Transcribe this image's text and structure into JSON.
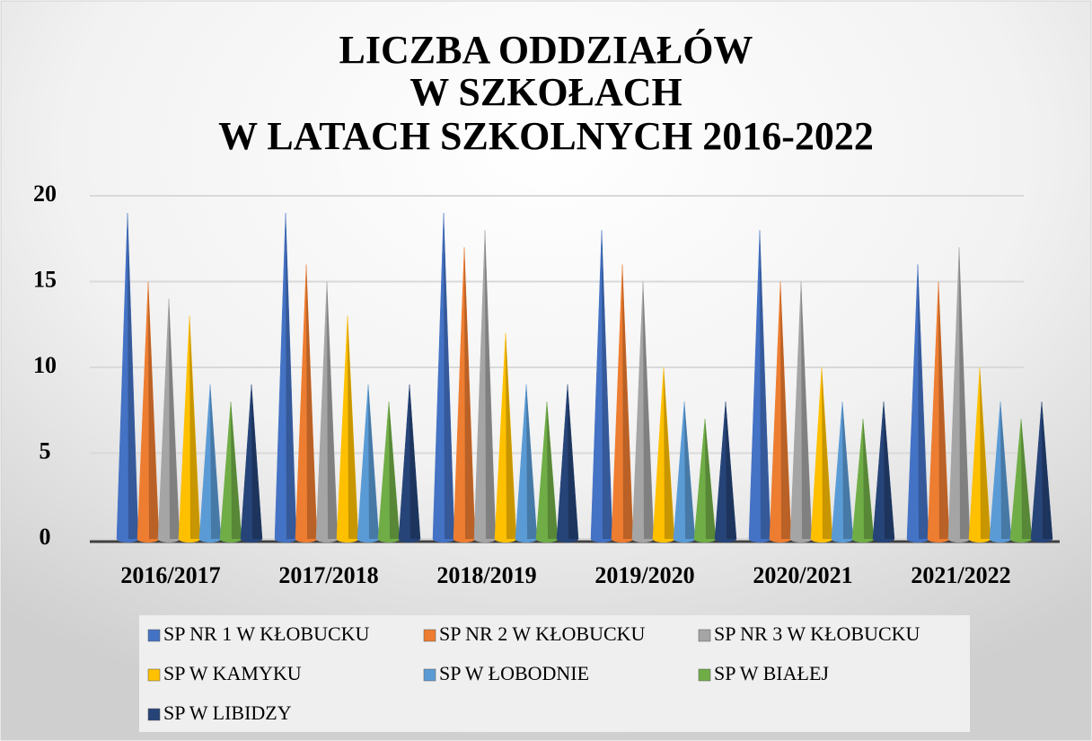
{
  "chart_data": {
    "type": "bar",
    "title": [
      "LICZBA ODDZIAŁÓW",
      "W SZKOŁACH",
      "W LATACH SZKOLNYCH 2016-2022"
    ],
    "categories": [
      "2016/2017",
      "2017/2018",
      "2018/2019",
      "2019/2020",
      "2020/2021",
      "2021/2022"
    ],
    "series": [
      {
        "name": "SP NR 1 W KŁOBUCKU",
        "color": "#4472c4",
        "values": [
          19,
          19,
          19,
          18,
          18,
          16
        ]
      },
      {
        "name": "SP NR 2 W KŁOBUCKU",
        "color": "#ed7d31",
        "values": [
          15,
          16,
          17,
          16,
          15,
          15
        ]
      },
      {
        "name": "SP NR 3 W KŁOBUCKU",
        "color": "#a5a5a5",
        "values": [
          14,
          15,
          18,
          15,
          15,
          17
        ]
      },
      {
        "name": "SP W KAMYKU",
        "color": "#ffc000",
        "values": [
          13,
          13,
          12,
          10,
          10,
          10
        ]
      },
      {
        "name": "SP W ŁOBODNIE",
        "color": "#5b9bd5",
        "values": [
          9,
          9,
          9,
          8,
          8,
          8
        ]
      },
      {
        "name": "SP W BIAŁEJ",
        "color": "#70ad47",
        "values": [
          8,
          8,
          8,
          7,
          7,
          7
        ]
      },
      {
        "name": "SP W LIBIDZY",
        "color": "#264478",
        "values": [
          9,
          9,
          9,
          8,
          8,
          8
        ]
      }
    ],
    "ylim": [
      0,
      20
    ],
    "yticks": [
      0,
      5,
      10,
      15,
      20
    ],
    "grid": true
  }
}
